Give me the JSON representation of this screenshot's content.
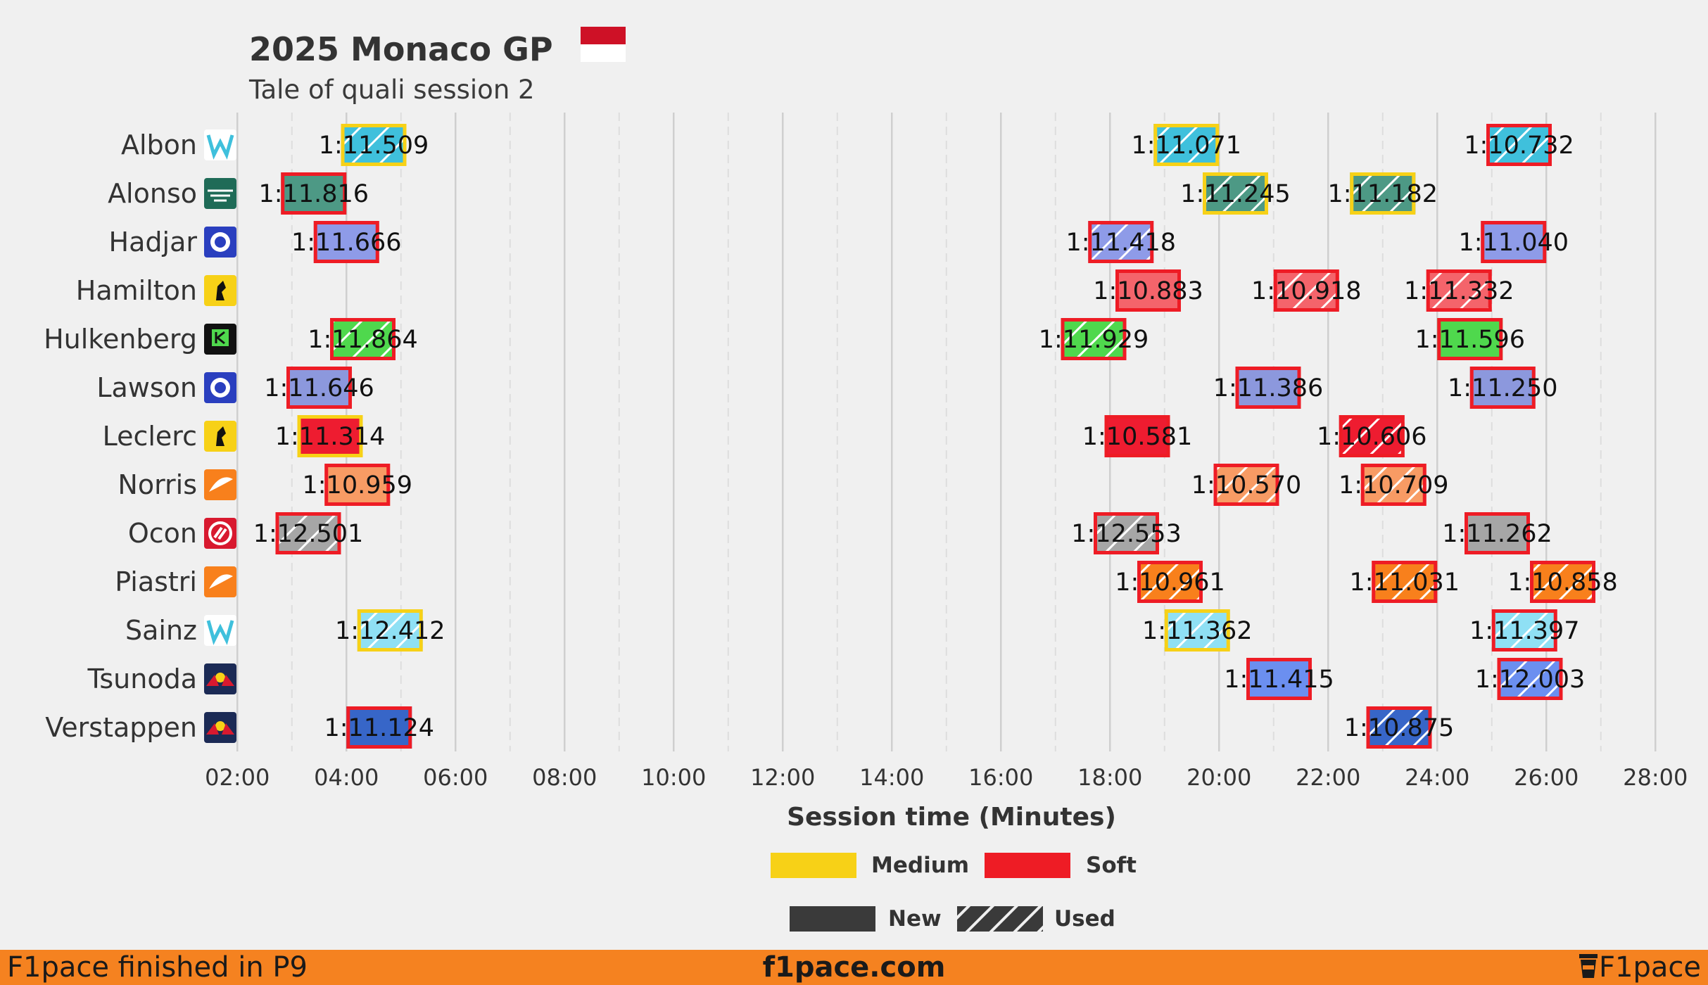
{
  "chart_data": {
    "type": "timeline",
    "title": "2025 Monaco GP",
    "subtitle": "Tale of quali session 2",
    "xlabel": "Session time (Minutes)",
    "xlim": [
      1.3,
      28.9
    ],
    "x_ticks": [
      "02:00",
      "04:00",
      "06:00",
      "08:00",
      "10:00",
      "12:00",
      "14:00",
      "16:00",
      "18:00",
      "20:00",
      "22:00",
      "24:00",
      "26:00",
      "28:00"
    ],
    "x_tick_values": [
      2,
      4,
      6,
      8,
      10,
      12,
      14,
      16,
      18,
      20,
      22,
      24,
      26,
      28
    ],
    "grid": true,
    "legend_placement": "bottom-center",
    "compounds": {
      "Medium": "#f7d117",
      "Soft": "#ee1c25"
    },
    "legend": [
      {
        "label": "Medium",
        "kind": "compound",
        "compound": "Medium"
      },
      {
        "label": "Soft",
        "kind": "compound",
        "compound": "Soft"
      },
      {
        "label": "New",
        "kind": "tyre_age",
        "used": false
      },
      {
        "label": "Used",
        "kind": "tyre_age",
        "used": true
      }
    ],
    "drivers": [
      {
        "name": "Albon",
        "team_color": "#3fc0dc",
        "logo_icon": "williams-logo-icon",
        "laps": [
          {
            "start": 3.9,
            "end": 5.1,
            "time": "1:11.509",
            "compound": "Medium",
            "used": true
          },
          {
            "start": 18.8,
            "end": 20.0,
            "time": "1:11.071",
            "compound": "Medium",
            "used": true
          },
          {
            "start": 24.9,
            "end": 26.1,
            "time": "1:10.732",
            "compound": "Soft",
            "used": true
          }
        ]
      },
      {
        "name": "Alonso",
        "team_color": "#4d9985",
        "logo_icon": "aston-martin-logo-icon",
        "laps": [
          {
            "start": 2.8,
            "end": 4.0,
            "time": "1:11.816",
            "compound": "Soft",
            "used": false
          },
          {
            "start": 19.7,
            "end": 20.9,
            "time": "1:11.245",
            "compound": "Medium",
            "used": true
          },
          {
            "start": 22.4,
            "end": 23.6,
            "time": "1:11.182",
            "compound": "Medium",
            "used": true
          }
        ]
      },
      {
        "name": "Hadjar",
        "team_color": "#8e9be8",
        "logo_icon": "racing-bulls-logo-icon",
        "laps": [
          {
            "start": 3.4,
            "end": 4.6,
            "time": "1:11.666",
            "compound": "Soft",
            "used": false
          },
          {
            "start": 17.6,
            "end": 18.8,
            "time": "1:11.418",
            "compound": "Soft",
            "used": true
          },
          {
            "start": 24.8,
            "end": 26.0,
            "time": "1:11.040",
            "compound": "Soft",
            "used": false
          }
        ]
      },
      {
        "name": "Hamilton",
        "team_color": "#f4646b",
        "logo_icon": "ferrari-logo-icon",
        "laps": [
          {
            "start": 18.1,
            "end": 19.3,
            "time": "1:10.883",
            "compound": "Soft",
            "used": false
          },
          {
            "start": 21.0,
            "end": 22.2,
            "time": "1:10.918",
            "compound": "Soft",
            "used": true
          },
          {
            "start": 23.8,
            "end": 25.0,
            "time": "1:11.332",
            "compound": "Soft",
            "used": true
          }
        ]
      },
      {
        "name": "Hulkenberg",
        "team_color": "#4fd84d",
        "logo_icon": "sauber-logo-icon",
        "laps": [
          {
            "start": 3.7,
            "end": 4.9,
            "time": "1:11.864",
            "compound": "Soft",
            "used": true
          },
          {
            "start": 17.1,
            "end": 18.3,
            "time": "1:11.929",
            "compound": "Soft",
            "used": true
          },
          {
            "start": 24.0,
            "end": 25.2,
            "time": "1:11.596",
            "compound": "Soft",
            "used": false
          }
        ]
      },
      {
        "name": "Lawson",
        "team_color": "#8c98dd",
        "logo_icon": "racing-bulls-logo-icon",
        "laps": [
          {
            "start": 2.9,
            "end": 4.1,
            "time": "1:11.646",
            "compound": "Soft",
            "used": false
          },
          {
            "start": 20.3,
            "end": 21.5,
            "time": "1:11.386",
            "compound": "Soft",
            "used": false
          },
          {
            "start": 24.6,
            "end": 25.8,
            "time": "1:11.250",
            "compound": "Soft",
            "used": false
          }
        ]
      },
      {
        "name": "Leclerc",
        "team_color": "#ee1c30",
        "logo_icon": "ferrari-logo-icon",
        "laps": [
          {
            "start": 3.1,
            "end": 4.3,
            "time": "1:11.314",
            "compound": "Medium",
            "used": false
          },
          {
            "start": 17.9,
            "end": 19.1,
            "time": "1:10.581",
            "compound": "Soft",
            "used": false
          },
          {
            "start": 22.2,
            "end": 23.4,
            "time": "1:10.606",
            "compound": "Soft",
            "used": true
          }
        ]
      },
      {
        "name": "Norris",
        "team_color": "#f89b64",
        "logo_icon": "mclaren-logo-icon",
        "laps": [
          {
            "start": 3.6,
            "end": 4.8,
            "time": "1:10.959",
            "compound": "Soft",
            "used": false
          },
          {
            "start": 19.9,
            "end": 21.1,
            "time": "1:10.570",
            "compound": "Soft",
            "used": true
          },
          {
            "start": 22.6,
            "end": 23.8,
            "time": "1:10.709",
            "compound": "Soft",
            "used": true
          }
        ]
      },
      {
        "name": "Ocon",
        "team_color": "#a6a6a6",
        "logo_icon": "haas-logo-icon",
        "laps": [
          {
            "start": 2.7,
            "end": 3.9,
            "time": "1:12.501",
            "compound": "Soft",
            "used": true
          },
          {
            "start": 17.7,
            "end": 18.9,
            "time": "1:12.553",
            "compound": "Soft",
            "used": true
          },
          {
            "start": 24.5,
            "end": 25.7,
            "time": "1:11.262",
            "compound": "Soft",
            "used": false
          }
        ]
      },
      {
        "name": "Piastri",
        "team_color": "#f8801c",
        "logo_icon": "mclaren-logo-icon",
        "laps": [
          {
            "start": 18.5,
            "end": 19.7,
            "time": "1:10.961",
            "compound": "Soft",
            "used": true
          },
          {
            "start": 22.8,
            "end": 24.0,
            "time": "1:11.031",
            "compound": "Soft",
            "used": true
          },
          {
            "start": 25.7,
            "end": 26.9,
            "time": "1:10.858",
            "compound": "Soft",
            "used": true
          }
        ]
      },
      {
        "name": "Sainz",
        "team_color": "#8fe0f4",
        "logo_icon": "williams-logo-icon",
        "laps": [
          {
            "start": 4.2,
            "end": 5.4,
            "time": "1:12.412",
            "compound": "Medium",
            "used": true
          },
          {
            "start": 19.0,
            "end": 20.2,
            "time": "1:11.362",
            "compound": "Medium",
            "used": true
          },
          {
            "start": 25.0,
            "end": 26.2,
            "time": "1:11.397",
            "compound": "Soft",
            "used": true
          }
        ]
      },
      {
        "name": "Tsunoda",
        "team_color": "#6b8ff0",
        "logo_icon": "red-bull-logo-icon",
        "laps": [
          {
            "start": 20.5,
            "end": 21.7,
            "time": "1:11.415",
            "compound": "Soft",
            "used": false
          },
          {
            "start": 25.1,
            "end": 26.3,
            "time": "1:12.003",
            "compound": "Soft",
            "used": true
          }
        ]
      },
      {
        "name": "Verstappen",
        "team_color": "#3766c8",
        "logo_icon": "red-bull-logo-icon",
        "laps": [
          {
            "start": 4.0,
            "end": 5.2,
            "time": "1:11.124",
            "compound": "Soft",
            "used": false
          },
          {
            "start": 22.7,
            "end": 23.9,
            "time": "1:10.875",
            "compound": "Soft",
            "used": true
          }
        ]
      }
    ]
  },
  "footer": {
    "left": "F1pace finished in P9",
    "center": "f1pace.com",
    "right": "F1pace",
    "right_icon": "coffee-cup-icon"
  },
  "flag_icon": "monaco-flag-icon",
  "colors": {
    "background": "#f0f0f0",
    "footer": "#f58220"
  }
}
